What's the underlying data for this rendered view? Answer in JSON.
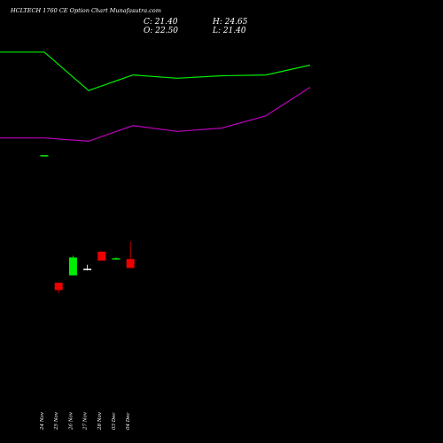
{
  "title": "HCLTECH 1760  CE Option  Chart Munafasutra.com",
  "ohlc": {
    "close": "C: 21.40",
    "high": "H: 24.65",
    "open": "O: 22.50",
    "low": "L: 21.40"
  },
  "chart_data": {
    "type": "candlestick",
    "title": "HCLTECH 1760  CE Option  Chart Munafasutra.com",
    "x_tick_labels": [
      "24 Nov",
      "25 Nov",
      "26 Nov",
      "27 Nov",
      "28 Nov",
      "03 Dec",
      "04 Dec"
    ],
    "candles": [
      {
        "date": "24 Nov",
        "open": 35.2,
        "high": 35.2,
        "low": 35.2,
        "close": 35.2,
        "color": "#00ee00"
      },
      {
        "date": "25 Nov",
        "open": 19.6,
        "high": 19.6,
        "low": 18.3,
        "close": 18.7,
        "color": "#ee0000"
      },
      {
        "date": "26 Nov",
        "open": 20.5,
        "high": 22.9,
        "low": 20.5,
        "close": 22.7,
        "color": "#00ee00"
      },
      {
        "date": "27 Nov",
        "open": 21.3,
        "high": 21.8,
        "low": 21.1,
        "close": 21.3,
        "color": "#ffffff"
      },
      {
        "date": "28 Nov",
        "open": 23.4,
        "high": 23.4,
        "low": 22.3,
        "close": 22.3,
        "color": "#ee0000"
      },
      {
        "date": "03 Dec",
        "open": 22.5,
        "high": 22.7,
        "low": 22.4,
        "close": 22.6,
        "color": "#00ee00"
      },
      {
        "date": "04 Dec",
        "open": 22.5,
        "high": 24.65,
        "low": 21.4,
        "close": 21.4,
        "color": "#ee0000"
      }
    ],
    "series": [
      {
        "color": "#00ee00",
        "x": [
          -1,
          0,
          1,
          2,
          3,
          4,
          5,
          6
        ],
        "values": [
          47.8,
          47.8,
          43.1,
          45.0,
          44.6,
          44.9,
          45.0,
          46.2
        ]
      },
      {
        "color": "#bb00bb",
        "x": [
          -1,
          0,
          1,
          2,
          3,
          4,
          5,
          6
        ],
        "values": [
          37.3,
          37.3,
          36.9,
          38.8,
          38.1,
          38.5,
          40.0,
          43.5
        ]
      }
    ],
    "ylim": [
      0,
      52
    ],
    "grid": false
  }
}
